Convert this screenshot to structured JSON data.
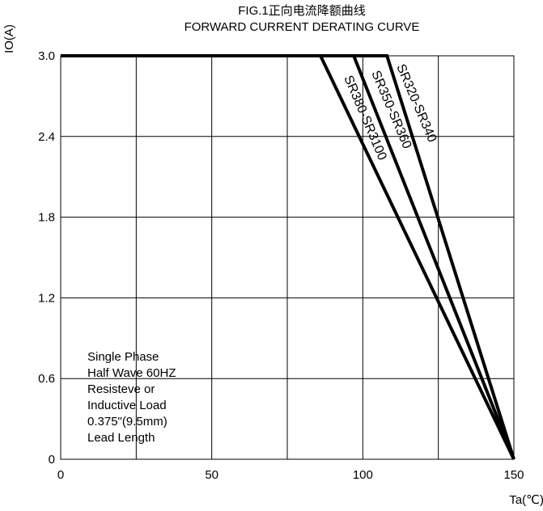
{
  "chart_data": {
    "type": "line",
    "title": "FIG.1正向电流降额曲线",
    "subtitle": "FORWARD CURRENT  DERATING CURVE",
    "xlabel": "Ta(℃)",
    "ylabel": "IO(A)",
    "xlim": [
      0,
      150
    ],
    "ylim": [
      0,
      3.0
    ],
    "x_ticks": [
      "0",
      "50",
      "100",
      "150"
    ],
    "y_ticks": [
      "0",
      "0.6",
      "1.2",
      "1.8",
      "2.4",
      "3.0"
    ],
    "grid": true,
    "series": [
      {
        "name": "SR320-SR340",
        "x": [
          0,
          108,
          150
        ],
        "y": [
          3.0,
          3.0,
          0
        ]
      },
      {
        "name": "SR350-SR360",
        "x": [
          0,
          97,
          150
        ],
        "y": [
          3.0,
          3.0,
          0
        ]
      },
      {
        "name": "SR380-SR3100",
        "x": [
          0,
          86,
          150
        ],
        "y": [
          3.0,
          3.0,
          0
        ]
      }
    ],
    "annotation": [
      "Single Phase",
      "Half Wave 60HZ",
      "Resisteve or",
      "Inductive Load",
      "0.375\"(9.5mm)",
      "Lead Length"
    ]
  }
}
